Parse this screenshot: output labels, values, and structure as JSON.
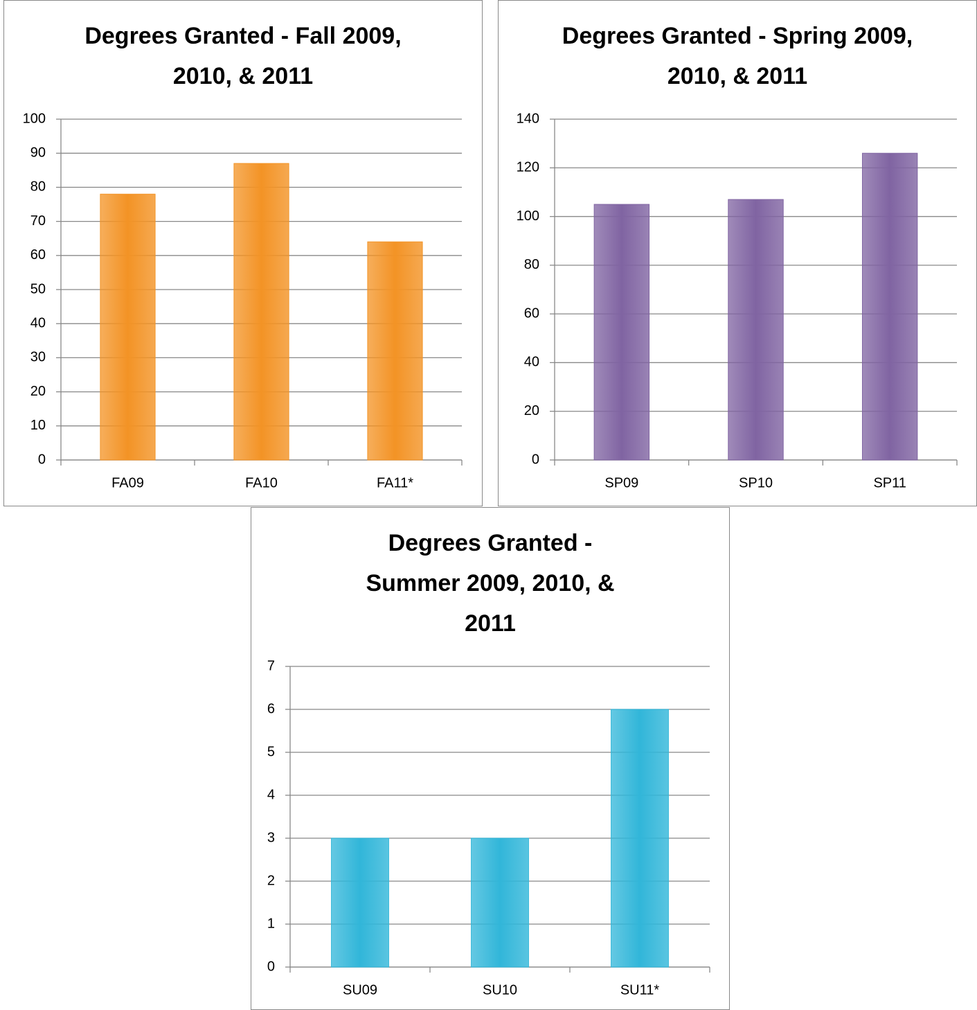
{
  "chart_data": [
    {
      "type": "bar",
      "title": "Degrees Granted - Fall 2009, 2010, & 2011",
      "categories": [
        "FA09",
        "FA10",
        "FA11*"
      ],
      "values": [
        78,
        87,
        64
      ],
      "color": "#f39325",
      "ylim": [
        0,
        100
      ],
      "yticks": [
        0,
        10,
        20,
        30,
        40,
        50,
        60,
        70,
        80,
        90,
        100
      ],
      "grid": true
    },
    {
      "type": "bar",
      "title": "Degrees Granted - Spring 2009, 2010, & 2011",
      "categories": [
        "SP09",
        "SP10",
        "SP11"
      ],
      "values": [
        105,
        107,
        126
      ],
      "color": "#8064a2",
      "ylim": [
        0,
        140
      ],
      "yticks": [
        0,
        20,
        40,
        60,
        80,
        100,
        120,
        140
      ],
      "grid": true
    },
    {
      "type": "bar",
      "title": "Degrees Granted - Summer 2009, 2010, & 2011",
      "categories": [
        "SU09",
        "SU10",
        "SU11*"
      ],
      "values": [
        3,
        3,
        6
      ],
      "color": "#31b6d9",
      "ylim": [
        0,
        7
      ],
      "yticks": [
        0,
        1,
        2,
        3,
        4,
        5,
        6,
        7
      ],
      "grid": true
    }
  ]
}
